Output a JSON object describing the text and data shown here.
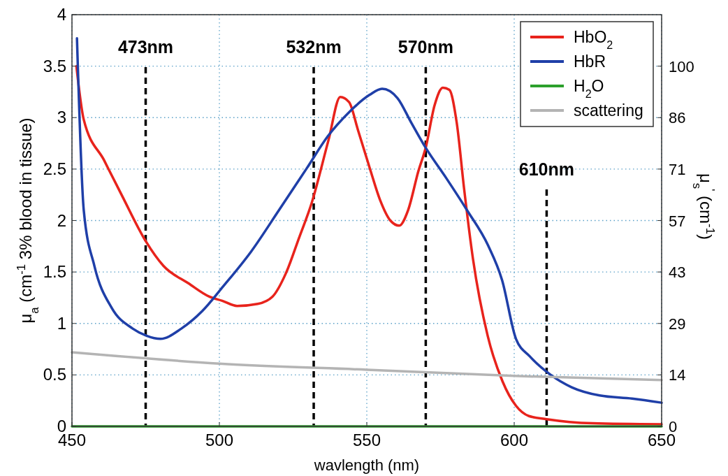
{
  "chart_data": {
    "type": "line",
    "xlabel": "wavlength (nm)",
    "ylabel": "μ$_{a}$ (cm$^{-1}$ 3% blood in tissue)",
    "y2label": "μ$_{s}$$^{'}$ (cm$^{-1}$)",
    "xlim": [
      450,
      650
    ],
    "xticks": [
      450,
      500,
      550,
      600,
      650
    ],
    "ylim": [
      0,
      4
    ],
    "yticks": [
      0,
      0.5,
      1,
      1.5,
      2,
      2.5,
      3,
      3.5,
      4
    ],
    "y2lim": [
      0,
      114.29
    ],
    "y2ticks": [
      0,
      {
        "value": 14.29,
        "label": "14"
      },
      {
        "value": 28.57,
        "label": "29"
      },
      {
        "value": 42.86,
        "label": "43"
      },
      {
        "value": 57.14,
        "label": "57"
      },
      {
        "value": 71.43,
        "label": "71"
      },
      {
        "value": 85.71,
        "label": "86"
      },
      100
    ],
    "grid": true,
    "legend": "top right",
    "line_style": "solid",
    "marker": "none",
    "series": [
      {
        "name": "HbO$_{2}$",
        "color": "#e8231c",
        "x": [
          451.5,
          454,
          461,
          467,
          475,
          481,
          489.5,
          496.6,
          501,
          506,
          513,
          518,
          522.6,
          527,
          531.3,
          537,
          541,
          544,
          547,
          551,
          554.5,
          558,
          561,
          564,
          567.5,
          570,
          573,
          575.8,
          578,
          580.5,
          583,
          586,
          591,
          596,
          600.6,
          605,
          611,
          626.6,
          650
        ],
        "values": [
          3.5,
          2.98,
          2.58,
          2.24,
          1.8,
          1.56,
          1.39,
          1.26,
          1.22,
          1.17,
          1.19,
          1.26,
          1.49,
          1.83,
          2.17,
          2.78,
          3.2,
          3.15,
          2.88,
          2.51,
          2.2,
          2.0,
          1.95,
          2.1,
          2.48,
          2.71,
          3.12,
          3.29,
          3.27,
          2.95,
          2.31,
          1.63,
          0.88,
          0.44,
          0.2,
          0.1,
          0.07,
          0.03,
          0.02
        ]
      },
      {
        "name": "HbR",
        "color": "#1f3fa8",
        "x": [
          451.7,
          454,
          457.6,
          463.5,
          470.6,
          475.3,
          480,
          487.1,
          494.2,
          501.3,
          510.8,
          520.2,
          529.7,
          536.8,
          543.9,
          550.9,
          555.2,
          560.4,
          565.1,
          569.9,
          577,
          584,
          591.1,
          595.9,
          600.6,
          605.3,
          612.4,
          619.5,
          629,
          640,
          650
        ],
        "values": [
          3.77,
          2.1,
          1.56,
          1.15,
          0.95,
          0.88,
          0.85,
          0.95,
          1.12,
          1.36,
          1.7,
          2.1,
          2.51,
          2.82,
          3.05,
          3.22,
          3.28,
          3.19,
          2.95,
          2.71,
          2.41,
          2.1,
          1.76,
          1.42,
          0.85,
          0.68,
          0.5,
          0.38,
          0.3,
          0.27,
          0.23
        ]
      },
      {
        "name": "H$_{2}$O",
        "color": "#2ca02c",
        "x": [
          450,
          650
        ],
        "values": [
          0,
          0
        ]
      },
      {
        "name": "scattering",
        "color": "#b4b4b4",
        "x": [
          450,
          500,
          550,
          600,
          650
        ],
        "values": [
          0.72,
          0.61,
          0.55,
          0.49,
          0.45
        ]
      }
    ],
    "ref_lines": [
      {
        "axis": "x",
        "value": 475,
        "label": "473nm",
        "color": "#000000",
        "line_style": "dashed"
      },
      {
        "axis": "x",
        "value": 532,
        "label": "532nm",
        "color": "#000000",
        "line_style": "dashed"
      },
      {
        "axis": "x",
        "value": 570,
        "label": "570nm",
        "color": "#000000",
        "line_style": "dashed"
      },
      {
        "axis": "x",
        "value": 611,
        "label": "610nm",
        "color": "#000000",
        "line_style": "dashed"
      }
    ]
  }
}
